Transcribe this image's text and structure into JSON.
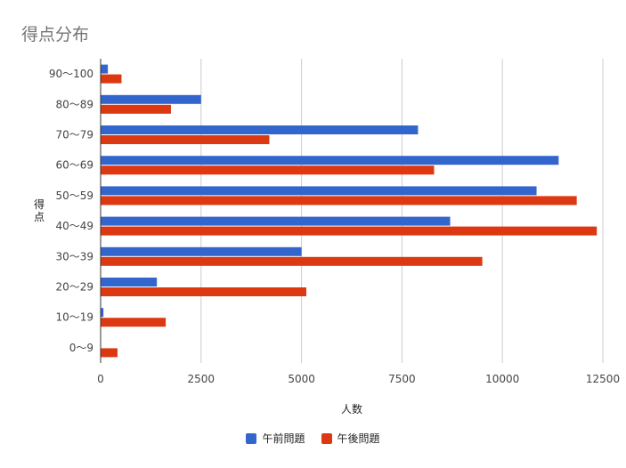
{
  "chart_data": {
    "type": "bar",
    "orientation": "horizontal",
    "title": "得点分布",
    "xlabel": "人数",
    "ylabel": "得点",
    "categories": [
      "90〜100",
      "80〜89",
      "70〜79",
      "60〜69",
      "50〜59",
      "40〜49",
      "30〜39",
      "20〜29",
      "10〜19",
      "0〜9"
    ],
    "series": [
      {
        "name": "午前問題",
        "color": "#3366cc",
        "values": [
          180,
          2500,
          7900,
          11400,
          10850,
          8700,
          5000,
          1400,
          70,
          0
        ]
      },
      {
        "name": "午後問題",
        "color": "#dc3912",
        "values": [
          520,
          1750,
          4200,
          8300,
          11850,
          12350,
          9500,
          5120,
          1620,
          420
        ]
      }
    ],
    "xlim": [
      0,
      12500
    ],
    "xticks": [
      "0",
      "2500",
      "5000",
      "7500",
      "10000",
      "12500"
    ],
    "grid": true,
    "legend_position": "bottom"
  }
}
